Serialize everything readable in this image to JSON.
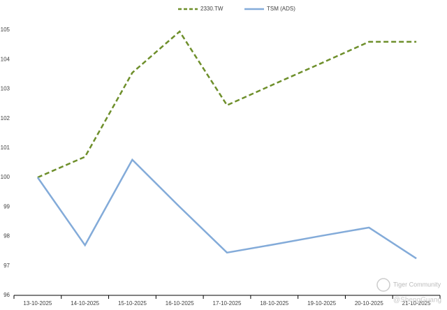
{
  "chart_data": {
    "type": "line",
    "categories": [
      "13-10-2025",
      "14-10-2025",
      "15-10-2025",
      "16-10-2025",
      "17-10-2025",
      "18-10-2025",
      "19-10-2025",
      "20-10-2025",
      "21-10-2025"
    ],
    "series": [
      {
        "name": "2330.TW",
        "color": "#6e8f2b",
        "dashed": true,
        "values": [
          100,
          100.7,
          103.55,
          104.95,
          102.45,
          103.17,
          103.88,
          104.6,
          104.6
        ]
      },
      {
        "name": "TSM (ADS)",
        "color": "#83abd9",
        "dashed": false,
        "values": [
          100,
          97.7,
          100.6,
          99.0,
          97.45,
          97.73,
          98.02,
          98.3,
          97.25
        ]
      }
    ],
    "ylim": [
      96,
      105
    ],
    "yticks": [
      96,
      97,
      98,
      99,
      100,
      101,
      102,
      103,
      104,
      105
    ],
    "grid": false,
    "legend": "top",
    "watermark": [
      "Tiger Community",
      "@ShengGuang"
    ]
  }
}
